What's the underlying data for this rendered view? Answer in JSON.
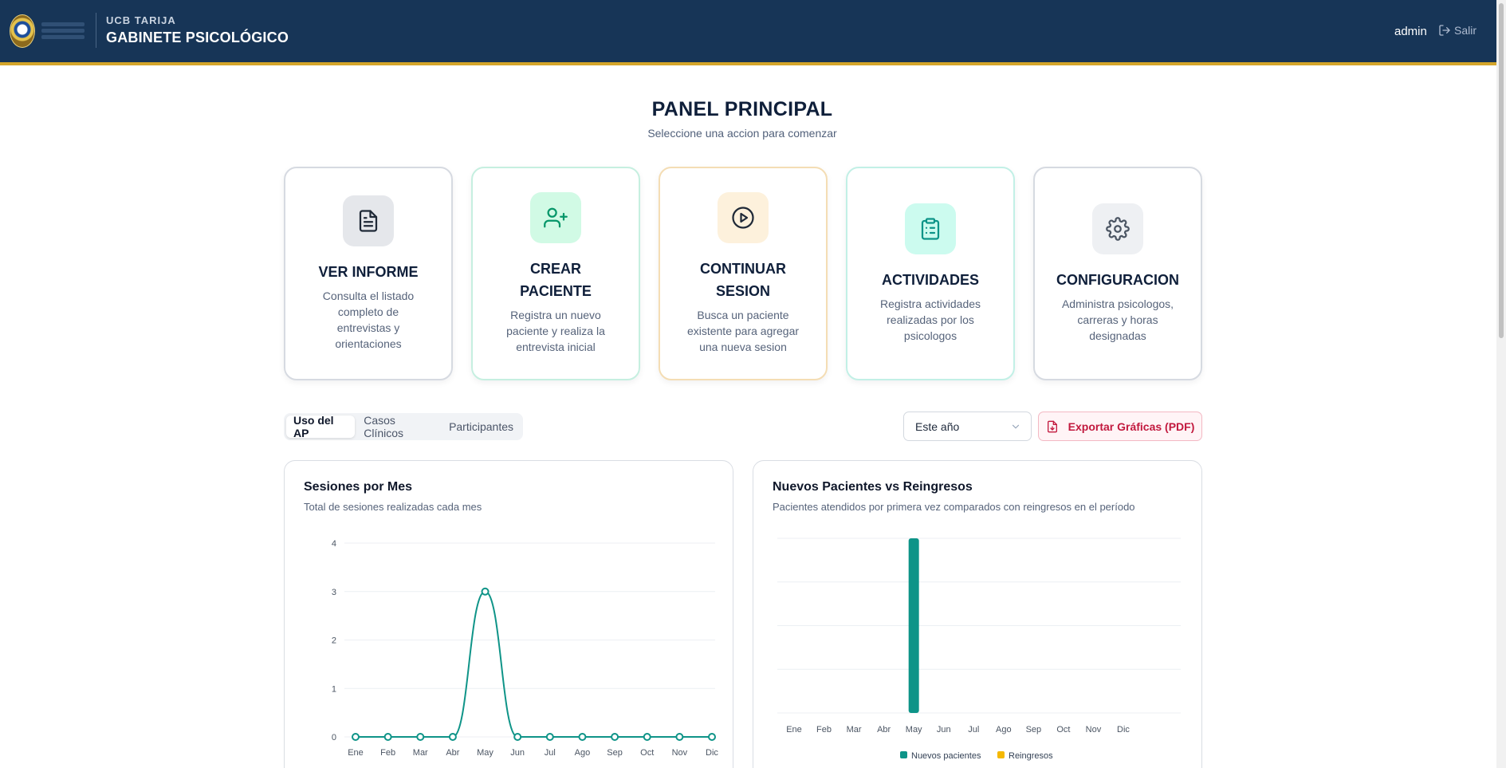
{
  "header": {
    "brand_sub": "UCB TARIJA",
    "brand_main": "GABINETE PSICOLÓGICO",
    "user": "admin",
    "logout": "Salir"
  },
  "main": {
    "title": "PANEL PRINCIPAL",
    "subtitle": "Seleccione una accion para comenzar"
  },
  "cards": [
    {
      "title_lines": [
        "VER INFORME"
      ],
      "desc_lines": [
        "Consulta el listado",
        "completo de",
        "entrevistas y",
        "orientaciones"
      ],
      "icon": "file-text-icon",
      "icon_bg": "#e5e7eb",
      "icon_color": "#1f2937"
    },
    {
      "title_lines": [
        "CREAR",
        "PACIENTE"
      ],
      "desc_lines": [
        "Registra un nuevo",
        "paciente y realiza la",
        "entrevista inicial"
      ],
      "icon": "user-plus-icon",
      "icon_bg": "#d1fae5",
      "icon_color": "#059669"
    },
    {
      "title_lines": [
        "CONTINUAR",
        "SESION"
      ],
      "desc_lines": [
        "Busca un paciente",
        "existente para agregar",
        "una nueva sesion"
      ],
      "icon": "play-circle-icon",
      "icon_bg": "#fdf1dc",
      "icon_color": "#1f2937"
    },
    {
      "title_lines": [
        "ACTIVIDADES"
      ],
      "desc_lines": [
        "Registra actividades",
        "realizadas por los",
        "psicologos"
      ],
      "icon": "clipboard-list-icon",
      "icon_bg": "#ccfbef",
      "icon_color": "#0d9488"
    },
    {
      "title_lines": [
        "CONFIGURACION"
      ],
      "desc_lines": [
        "Administra psicologos,",
        "carreras y horas",
        "designadas"
      ],
      "icon": "gear-icon",
      "icon_bg": "#eef0f3",
      "icon_color": "#4b5563"
    }
  ],
  "tabs": [
    "Uso del AP",
    "Casos Clínicos",
    "Participantes"
  ],
  "active_tab": 0,
  "period_select": "Este año",
  "export_label": "Exportar Gráficas (PDF)",
  "colors": {
    "header_bg": "#173557",
    "accent_gold": "#d4a52a",
    "line_teal": "#0f9488",
    "bar_new": "#0d9488",
    "bar_return": "#f5b800",
    "export_red": "#c2193e"
  },
  "chart_data": [
    {
      "type": "line",
      "title": "Sesiones por Mes",
      "subtitle": "Total de sesiones realizadas cada mes",
      "categories": [
        "Ene",
        "Feb",
        "Mar",
        "Abr",
        "May",
        "Jun",
        "Jul",
        "Ago",
        "Sep",
        "Oct",
        "Nov",
        "Dic"
      ],
      "series": [
        {
          "values": [
            0,
            0,
            0,
            0,
            3,
            0,
            0,
            0,
            0,
            0,
            0,
            0
          ]
        }
      ],
      "yticks": [
        0,
        1,
        2,
        3,
        4
      ],
      "ylim": [
        0,
        4
      ],
      "grid": true
    },
    {
      "type": "bar",
      "title": "Nuevos Pacientes vs Reingresos",
      "subtitle": "Pacientes atendidos por primera vez comparados con reingresos en el período",
      "categories": [
        "Ene",
        "Feb",
        "Mar",
        "Abr",
        "May",
        "Jun",
        "Jul",
        "Ago",
        "Sep",
        "Oct",
        "Nov",
        "Dic"
      ],
      "series": [
        {
          "name": "Nuevos pacientes",
          "values": [
            0,
            0,
            0,
            0,
            4,
            0,
            0,
            0,
            0,
            0,
            0,
            0
          ]
        },
        {
          "name": "Reingresos",
          "values": [
            0,
            0,
            0,
            0,
            0,
            0,
            0,
            0,
            0,
            0,
            0,
            0
          ]
        }
      ],
      "ylim": [
        0,
        4
      ],
      "grid": true,
      "legend": "bottom"
    }
  ]
}
